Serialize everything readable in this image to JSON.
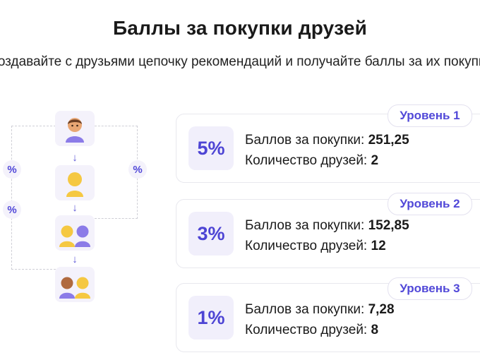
{
  "title": "Баллы за покупки друзей",
  "subtitle": "Создавайте с друзьями цепочку рекомендаций и получайте баллы за их покупки",
  "tree": {
    "percent_symbol": "%",
    "nodes": [
      {
        "icon": "user-icon"
      },
      {
        "icon": "friend-icon"
      },
      {
        "icon": "two-friends-icon"
      },
      {
        "icon": "friends-group-icon"
      }
    ],
    "arrow": "↓"
  },
  "colors": {
    "accent": "#5148d8",
    "purple": "#8b7be8",
    "yellow": "#f5c842",
    "node_bg": "#f4f2fb"
  },
  "levels": [
    {
      "badge": "Уровень 1",
      "percent": "5%",
      "points_label": "Баллов за покупки:",
      "points_value": "251,25",
      "friends_label": "Количество друзей:",
      "friends_value": "2"
    },
    {
      "badge": "Уровень 2",
      "percent": "3%",
      "points_label": "Баллов за покупки:",
      "points_value": "152,85",
      "friends_label": "Количество друзей:",
      "friends_value": "12"
    },
    {
      "badge": "Уровень 3",
      "percent": "1%",
      "points_label": "Баллов за покупки:",
      "points_value": "7,28",
      "friends_label": "Количество друзей:",
      "friends_value": "8"
    }
  ]
}
